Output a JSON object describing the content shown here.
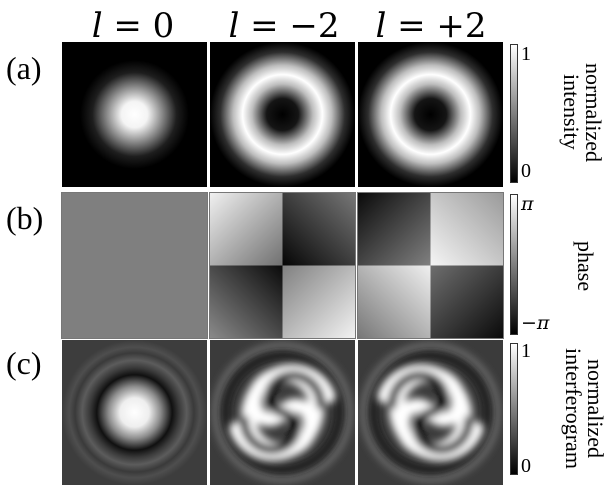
{
  "columns": [
    {
      "var": "l",
      "rest": " = 0"
    },
    {
      "var": "l",
      "rest": " = −2"
    },
    {
      "var": "l",
      "rest": " = +2"
    }
  ],
  "rows": [
    {
      "label": "(a)",
      "colorbar": {
        "max": "1",
        "min": "0",
        "title": "normalized intensity",
        "title_lines": [
          "normalized",
          "intensity"
        ]
      }
    },
    {
      "label": "(b)",
      "colorbar": {
        "max": "π",
        "min": "−π",
        "title": "phase",
        "title_lines": [
          "phase"
        ]
      }
    },
    {
      "label": "(c)",
      "colorbar": {
        "max": "1",
        "min": "0",
        "title": "normalized interferogram",
        "title_lines": [
          "normalized",
          "interferogram"
        ]
      }
    }
  ],
  "colormap": "grayscale",
  "colors": {
    "background": "#ffffff",
    "panel_base": "#000000",
    "flat_phase": "#7f7f7f",
    "text": "#000000"
  }
}
